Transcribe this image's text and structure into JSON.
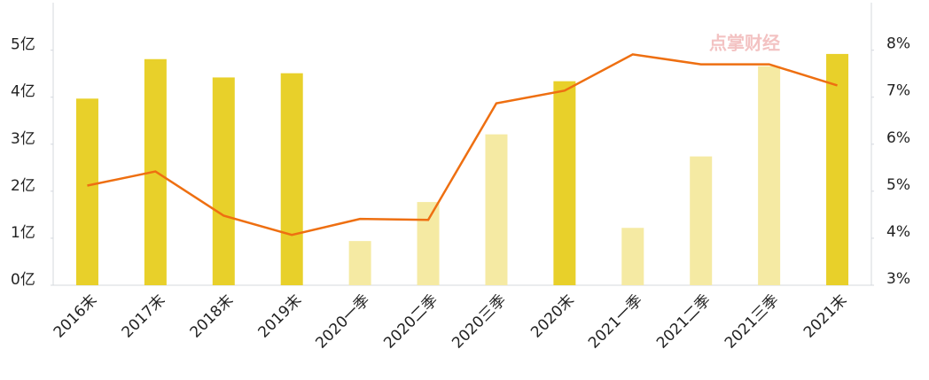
{
  "chart_data": {
    "type": "bar-line",
    "watermark": "点掌财经",
    "categories": [
      "2016末",
      "2017末",
      "2018末",
      "2019末",
      "2020一季",
      "2020二季",
      "2020三季",
      "2020末",
      "2021一季",
      "2021二季",
      "2021三季",
      "2021末"
    ],
    "series": [
      {
        "type": "bar",
        "values": [
          3.97,
          4.81,
          4.42,
          4.51,
          0.94,
          1.77,
          3.21,
          4.34,
          1.22,
          2.74,
          4.66,
          4.92
        ],
        "colors": [
          "#e8d02a",
          "#e8d02a",
          "#e8d02a",
          "#e8d02a",
          "#f5eaa3",
          "#f5eaa3",
          "#f5eaa3",
          "#e8d02a",
          "#f5eaa3",
          "#f5eaa3",
          "#f5eaa3",
          "#e8d02a"
        ]
      },
      {
        "type": "line",
        "axis": "y2",
        "color": "#ee6f11",
        "values": [
          5.12,
          5.42,
          4.48,
          4.07,
          4.41,
          4.39,
          6.87,
          7.14,
          7.91,
          7.7,
          7.7,
          7.25
        ]
      }
    ],
    "ylim": [
      0,
      6
    ],
    "yticks": [
      {
        "value": 0,
        "label": "0亿"
      },
      {
        "value": 1,
        "label": "1亿"
      },
      {
        "value": 2,
        "label": "2亿"
      },
      {
        "value": 3,
        "label": "3亿"
      },
      {
        "value": 4,
        "label": "4亿"
      },
      {
        "value": 5,
        "label": "5亿"
      }
    ],
    "y2lim": [
      3,
      9
    ],
    "y2ticks": [
      {
        "value": 3,
        "label": "3%"
      },
      {
        "value": 4,
        "label": "4%"
      },
      {
        "value": 5,
        "label": "5%"
      },
      {
        "value": 6,
        "label": "6%"
      },
      {
        "value": 7,
        "label": "7%"
      },
      {
        "value": 8,
        "label": "8%"
      }
    ]
  }
}
